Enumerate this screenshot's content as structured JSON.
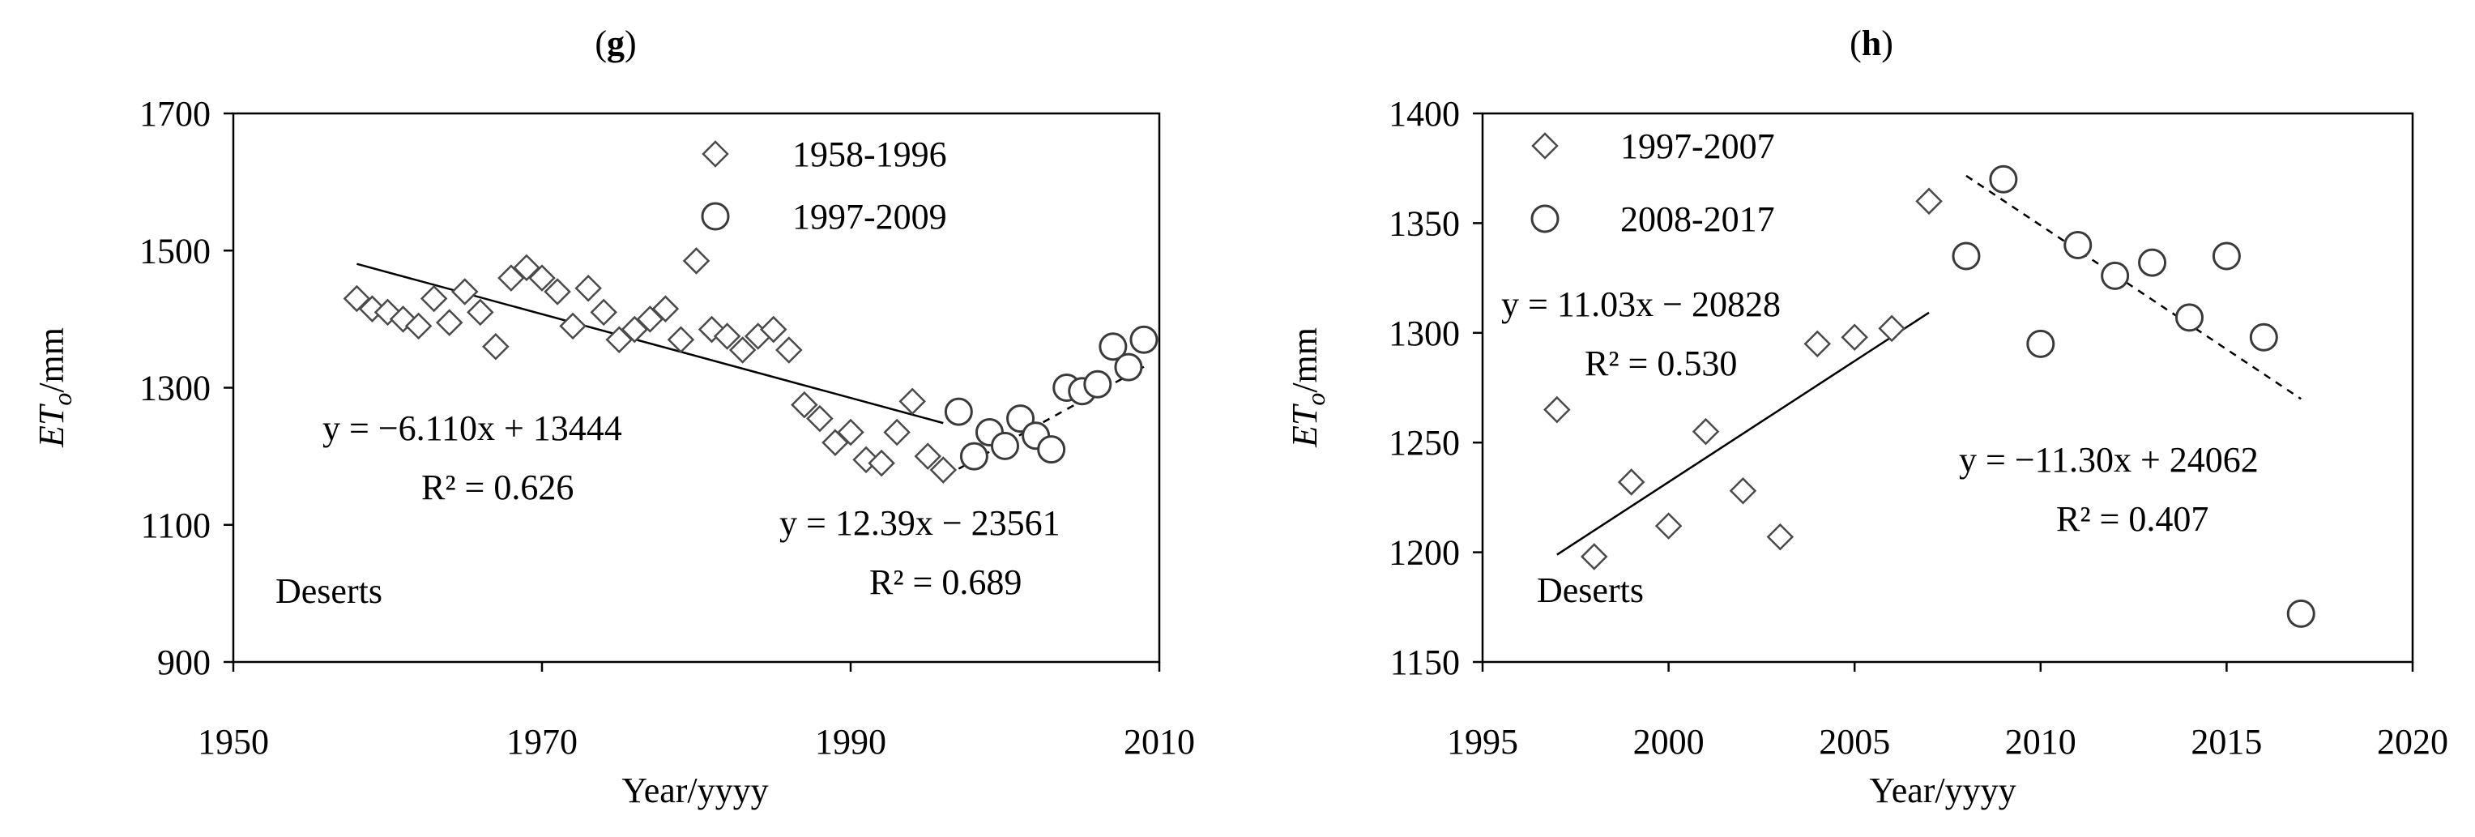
{
  "chart_data": [
    {
      "type": "scatter",
      "panel_label": "g",
      "xlabel": "Year/yyyy",
      "ylabel": "ET",
      "ylabel_sub": "o",
      "ylabel_unit": "/mm",
      "xlim": [
        1950,
        2010
      ],
      "ylim": [
        900,
        1700
      ],
      "xticks": [
        1950,
        1970,
        1990,
        2010
      ],
      "yticks": [
        900,
        1100,
        1300,
        1500,
        1700
      ],
      "legend_placement": "top-right",
      "grid": false,
      "annotation": "Deserts",
      "series": [
        {
          "name": "1958-1996",
          "marker": "diamond",
          "x": [
            1958,
            1959,
            1960,
            1961,
            1962,
            1963,
            1964,
            1965,
            1966,
            1967,
            1968,
            1969,
            1970,
            1971,
            1972,
            1973,
            1974,
            1975,
            1976,
            1977,
            1978,
            1979,
            1980,
            1981,
            1982,
            1983,
            1984,
            1985,
            1986,
            1987,
            1988,
            1989,
            1990,
            1991,
            1992,
            1993,
            1994,
            1995,
            1996
          ],
          "y": [
            1430,
            1415,
            1410,
            1400,
            1390,
            1430,
            1395,
            1440,
            1410,
            1360,
            1460,
            1475,
            1460,
            1440,
            1390,
            1445,
            1410,
            1370,
            1385,
            1400,
            1415,
            1370,
            1485,
            1385,
            1375,
            1355,
            1375,
            1385,
            1355,
            1275,
            1255,
            1220,
            1235,
            1195,
            1190,
            1235,
            1280,
            1200,
            1180
          ],
          "trend": {
            "x_range": [
              1958,
              1996
            ],
            "slope": -6.11,
            "intercept": 13444,
            "style": "solid",
            "equation": "y = −6.110x + 13444",
            "r2": "R² = 0.626"
          }
        },
        {
          "name": "1997-2009",
          "marker": "circle",
          "x": [
            1997,
            1998,
            1999,
            2000,
            2001,
            2002,
            2003,
            2004,
            2005,
            2006,
            2007,
            2008,
            2009
          ],
          "y": [
            1265,
            1200,
            1235,
            1215,
            1255,
            1230,
            1210,
            1300,
            1295,
            1305,
            1360,
            1330,
            1370
          ],
          "trend": {
            "x_range": [
              1997,
              2009
            ],
            "slope": 12.39,
            "intercept": -23561,
            "style": "dashed",
            "equation": "y = 12.39x − 23561",
            "r2": "R² = 0.689"
          }
        }
      ]
    },
    {
      "type": "scatter",
      "panel_label": "h",
      "xlabel": "Year/yyyy",
      "ylabel": "ET",
      "ylabel_sub": "o",
      "ylabel_unit": "/mm",
      "xlim": [
        1995,
        2020
      ],
      "ylim": [
        1150,
        1400
      ],
      "xticks": [
        1995,
        2000,
        2005,
        2010,
        2015,
        2020
      ],
      "yticks": [
        1150,
        1200,
        1250,
        1300,
        1350,
        1400
      ],
      "legend_placement": "top-left",
      "grid": false,
      "annotation": "Deserts",
      "series": [
        {
          "name": "1997-2007",
          "marker": "diamond",
          "x": [
            1997,
            1998,
            1999,
            2000,
            2001,
            2002,
            2003,
            2004,
            2005,
            2006,
            2007
          ],
          "y": [
            1265,
            1198,
            1232,
            1212,
            1255,
            1228,
            1207,
            1295,
            1298,
            1302,
            1360
          ],
          "trend": {
            "x_range": [
              1997,
              2007
            ],
            "slope": 11.03,
            "intercept": -20828,
            "style": "solid",
            "equation": "y = 11.03x − 20828",
            "r2": "R² = 0.530"
          }
        },
        {
          "name": "2008-2017",
          "marker": "circle",
          "x": [
            2008,
            2009,
            2010,
            2011,
            2012,
            2013,
            2014,
            2015,
            2016,
            2017
          ],
          "y": [
            1335,
            1370,
            1295,
            1340,
            1326,
            1332,
            1307,
            1335,
            1298,
            1172
          ],
          "trend": {
            "x_range": [
              2008,
              2017
            ],
            "slope": -11.3,
            "intercept": 24062,
            "style": "dashed",
            "equation": "y = −11.30x + 24062",
            "r2": "R² = 0.407"
          }
        }
      ]
    }
  ]
}
